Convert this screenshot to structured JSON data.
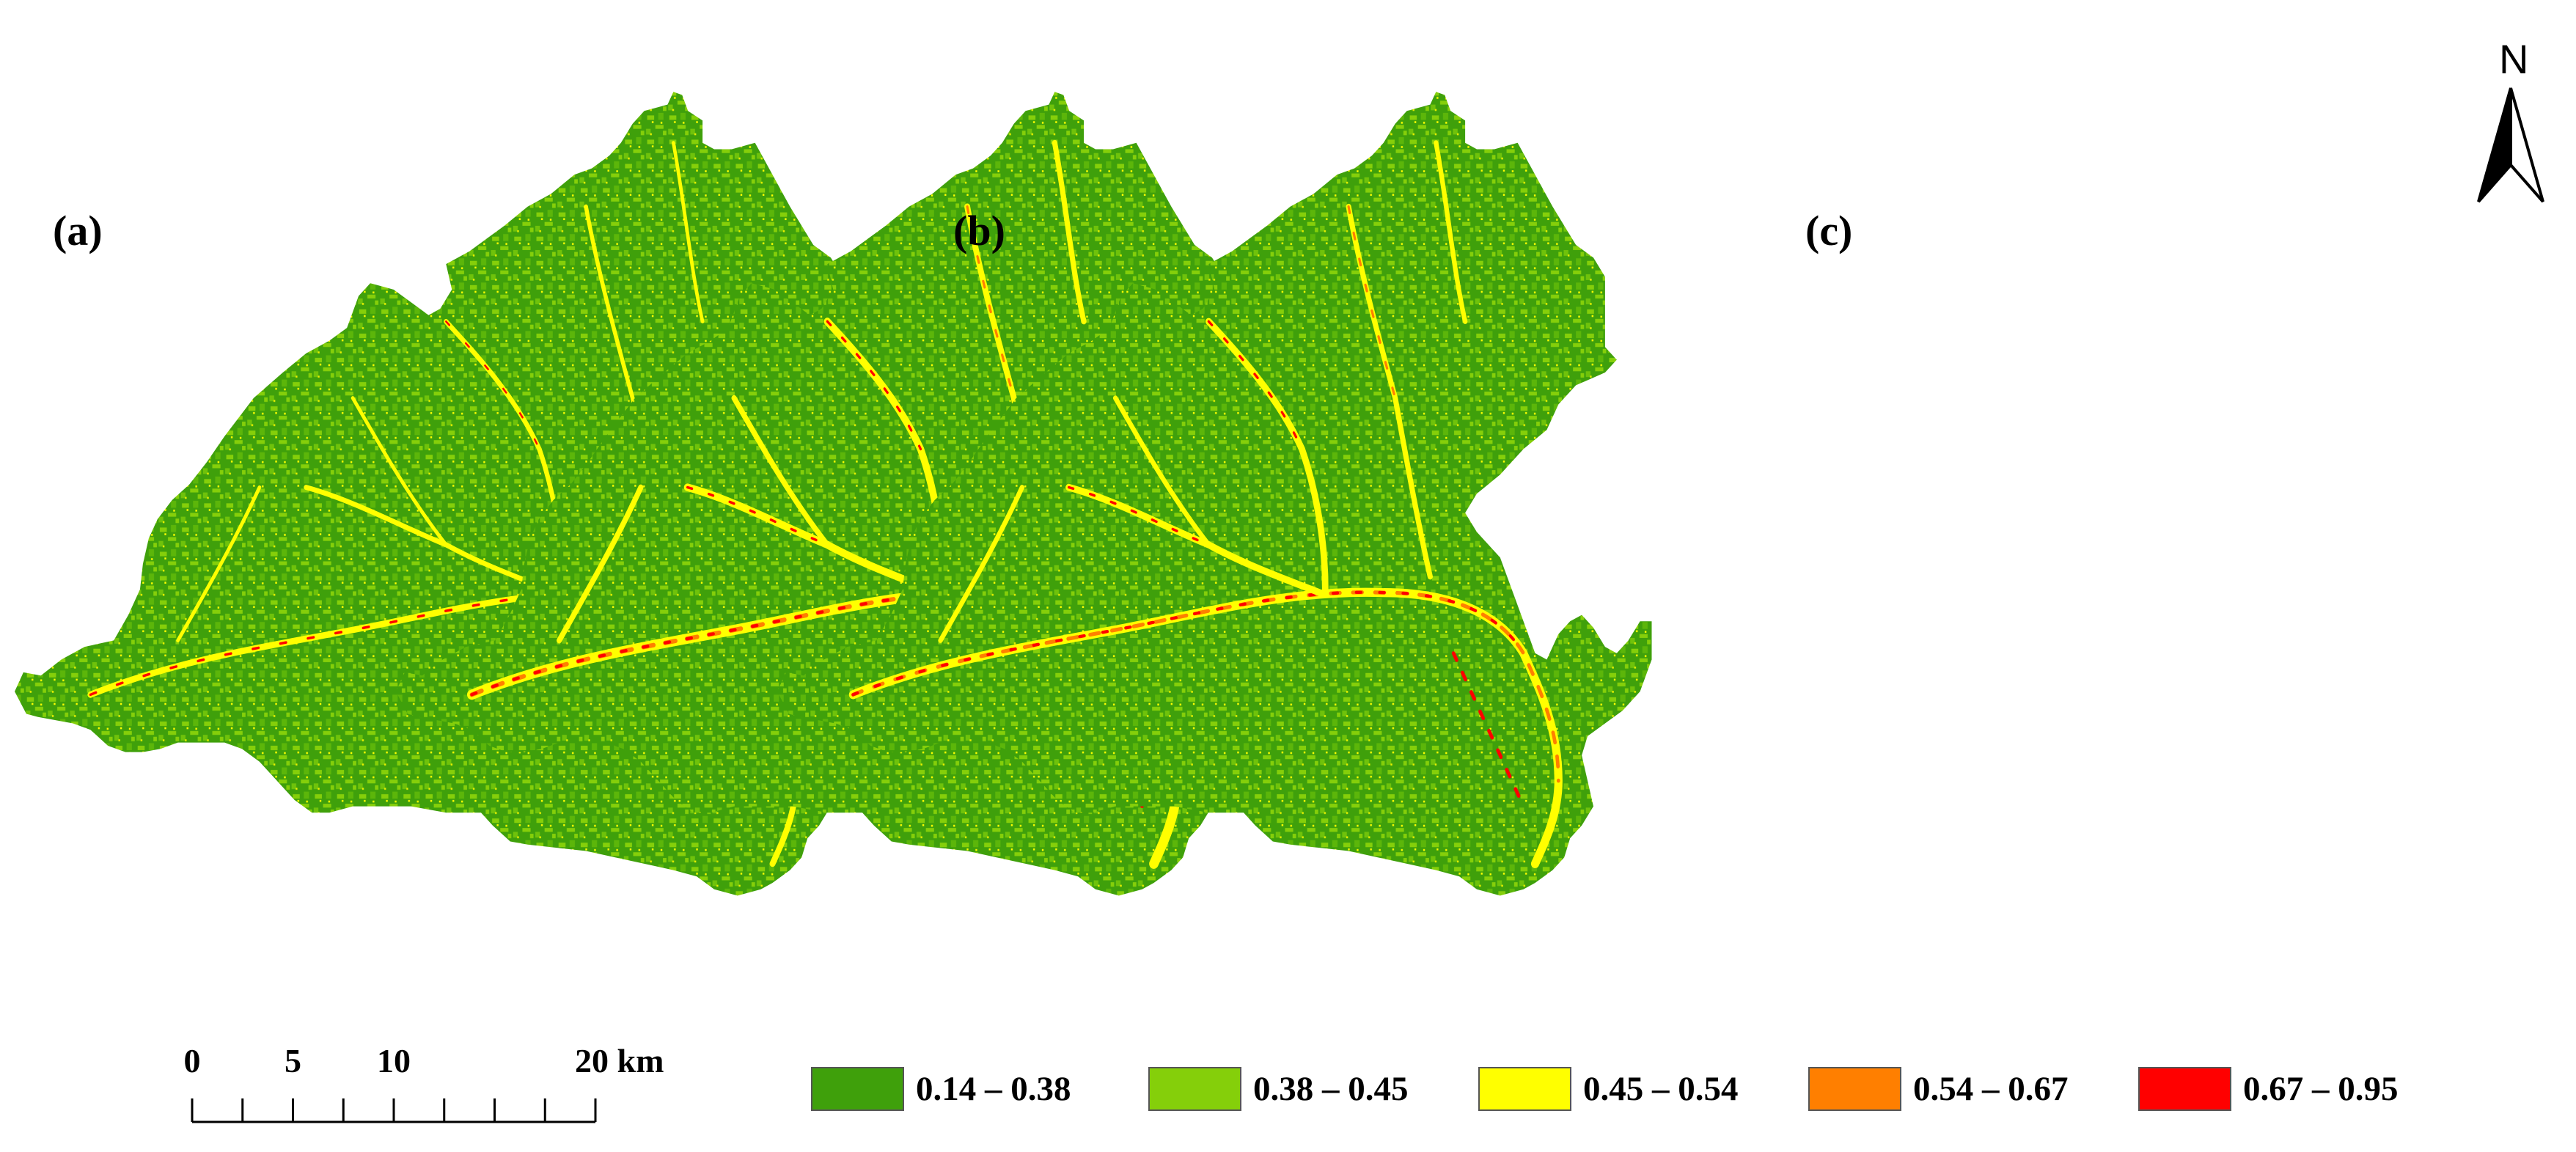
{
  "panels": [
    {
      "id": "a",
      "label": "(a)"
    },
    {
      "id": "b",
      "label": "(b)"
    },
    {
      "id": "c",
      "label": "(c)"
    }
  ],
  "north_arrow": {
    "label": "N",
    "icon": "north-arrow-icon"
  },
  "scale_bar": {
    "ticks": [
      {
        "value": 0,
        "label": "0"
      },
      {
        "value": 5,
        "label": "5"
      },
      {
        "value": 10,
        "label": "10"
      },
      {
        "value": 20,
        "label": "20 km"
      }
    ],
    "max_value": 20,
    "unit": "km"
  },
  "legend": {
    "classes": [
      {
        "label": "0.14 – 0.38",
        "color": "#3fa00b"
      },
      {
        "label": "0.38 – 0.45",
        "color": "#85cf0a"
      },
      {
        "label": "0.45 – 0.54",
        "color": "#ffff00"
      },
      {
        "label": "0.54 – 0.67",
        "color": "#ff7f00"
      },
      {
        "label": "0.67 – 0.95",
        "color": "#ff0000"
      }
    ]
  },
  "colors": {
    "base_dark_green": "#3fa00b",
    "light_green": "#85cf0a",
    "yellow": "#ffff00",
    "orange": "#ff7f00",
    "red": "#ff0000"
  }
}
